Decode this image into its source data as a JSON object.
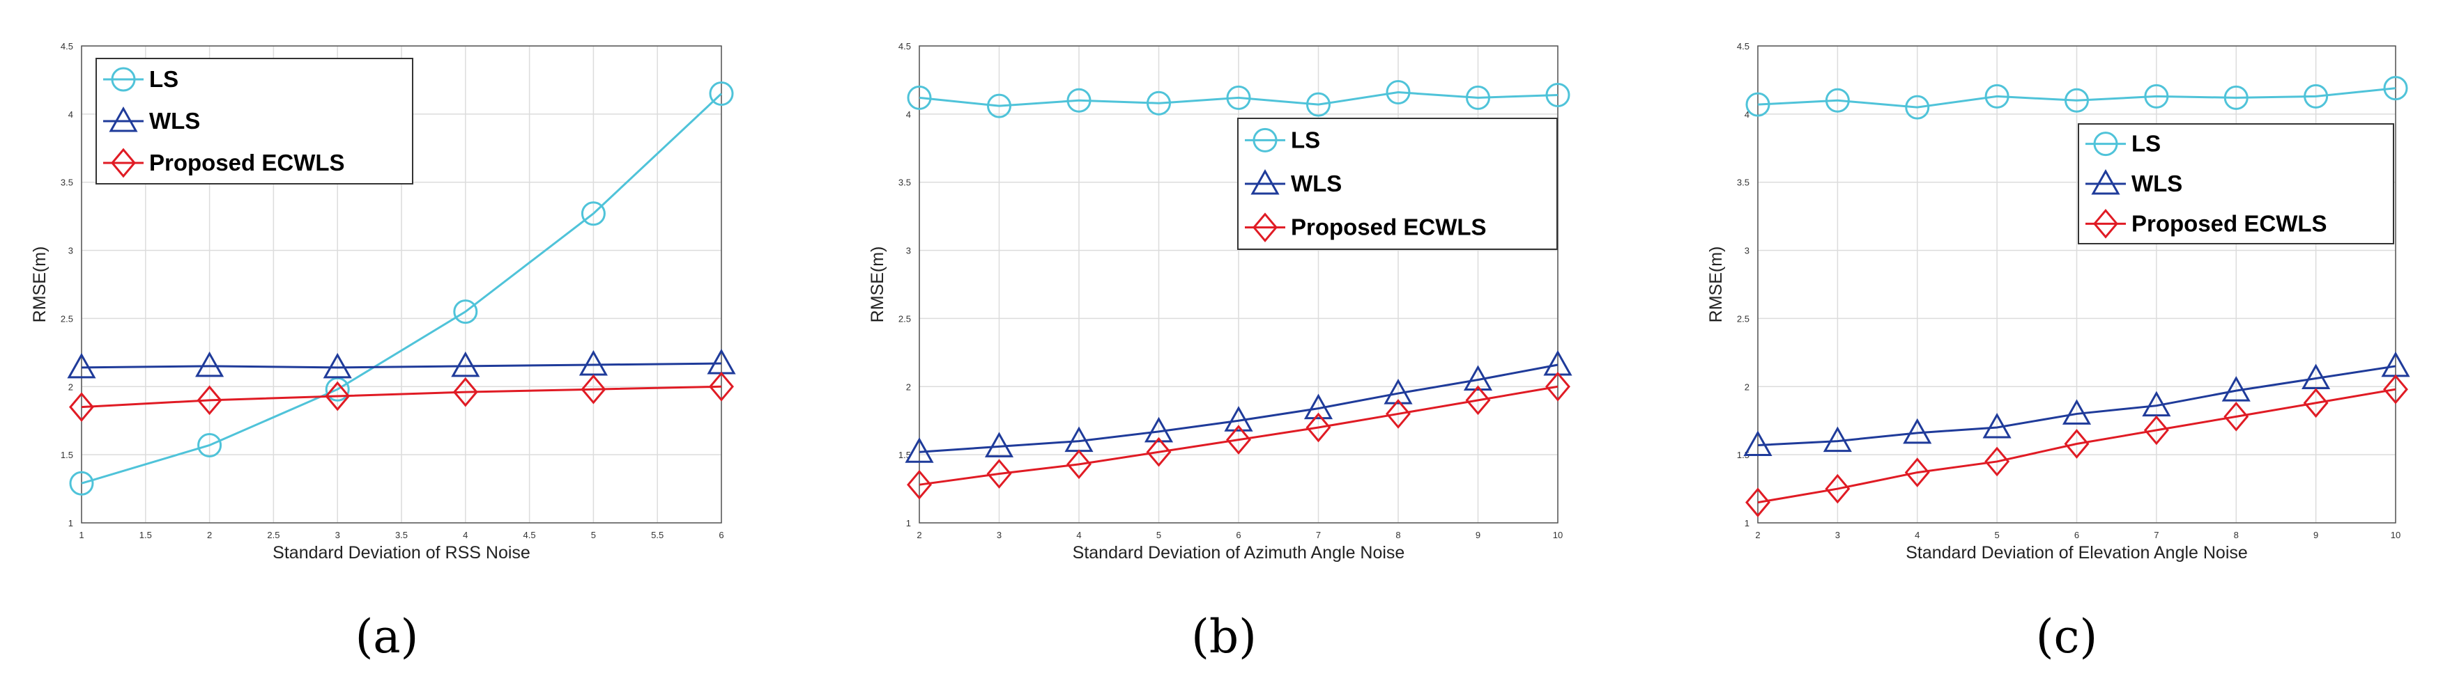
{
  "colors": {
    "LS": "#4fc3d9",
    "WLS": "#1f3b9a",
    "Proposed ECWLS": "#e01b24",
    "grid": "#dcdcdc",
    "axis": "#555555"
  },
  "chart_data": [
    {
      "type": "line",
      "caption": "(a)",
      "title": "",
      "xlabel": "Standard Deviation of RSS Noise",
      "ylabel": "RMSE(m)",
      "xlim": [
        1,
        6
      ],
      "ylim": [
        1,
        4.5
      ],
      "xticks": [
        1,
        1.5,
        2,
        2.5,
        3,
        3.5,
        4,
        4.5,
        5,
        5.5,
        6
      ],
      "xtick_labels": [
        "1",
        "1.5",
        "2",
        "2.5",
        "3",
        "3.5",
        "4",
        "4.5",
        "5",
        "5.5",
        "6"
      ],
      "yticks": [
        1,
        1.5,
        2,
        2.5,
        3,
        3.5,
        4,
        4.5
      ],
      "ytick_labels": [
        "1",
        "1.5",
        "2",
        "2.5",
        "3",
        "3.5",
        "4",
        "4.5"
      ],
      "grid": true,
      "legend_position": "top-left",
      "x": [
        1,
        2,
        3,
        4,
        5,
        6
      ],
      "series": [
        {
          "name": "LS",
          "marker": "circle",
          "values": [
            1.29,
            1.57,
            1.98,
            2.55,
            3.27,
            4.15
          ]
        },
        {
          "name": "WLS",
          "marker": "triangle",
          "values": [
            2.14,
            2.15,
            2.14,
            2.15,
            2.16,
            2.17
          ]
        },
        {
          "name": "Proposed ECWLS",
          "marker": "diamond",
          "values": [
            1.85,
            1.9,
            1.93,
            1.96,
            1.98,
            2.0
          ]
        }
      ]
    },
    {
      "type": "line",
      "caption": "(b)",
      "title": "",
      "xlabel": "Standard Deviation of Azimuth Angle Noise",
      "ylabel": "RMSE(m)",
      "xlim": [
        2,
        10
      ],
      "ylim": [
        1,
        4.5
      ],
      "xticks": [
        2,
        3,
        4,
        5,
        6,
        7,
        8,
        9,
        10
      ],
      "xtick_labels": [
        "2",
        "3",
        "4",
        "5",
        "6",
        "7",
        "8",
        "9",
        "10"
      ],
      "yticks": [
        1,
        1.5,
        2,
        2.5,
        3,
        3.5,
        4,
        4.5
      ],
      "ytick_labels": [
        "1",
        "1.5",
        "2",
        "2.5",
        "3",
        "3.5",
        "4",
        "4.5"
      ],
      "grid": true,
      "legend_position": "top-right",
      "x": [
        2,
        3,
        4,
        5,
        6,
        7,
        8,
        9,
        10
      ],
      "series": [
        {
          "name": "LS",
          "marker": "circle",
          "values": [
            4.12,
            4.06,
            4.1,
            4.08,
            4.12,
            4.07,
            4.16,
            4.12,
            4.14
          ]
        },
        {
          "name": "WLS",
          "marker": "triangle",
          "values": [
            1.52,
            1.56,
            1.6,
            1.67,
            1.75,
            1.84,
            1.95,
            2.05,
            2.16
          ]
        },
        {
          "name": "Proposed ECWLS",
          "marker": "diamond",
          "values": [
            1.28,
            1.36,
            1.43,
            1.52,
            1.61,
            1.7,
            1.8,
            1.9,
            2.0
          ]
        }
      ]
    },
    {
      "type": "line",
      "caption": "(c)",
      "title": "",
      "xlabel": "Standard Deviation of Elevation Angle Noise",
      "ylabel": "RMSE(m)",
      "xlim": [
        2,
        10
      ],
      "ylim": [
        1,
        4.5
      ],
      "xticks": [
        2,
        3,
        4,
        5,
        6,
        7,
        8,
        9,
        10
      ],
      "xtick_labels": [
        "2",
        "3",
        "4",
        "5",
        "6",
        "7",
        "8",
        "9",
        "10"
      ],
      "yticks": [
        1,
        1.5,
        2,
        2.5,
        3,
        3.5,
        4,
        4.5
      ],
      "ytick_labels": [
        "1",
        "1.5",
        "2",
        "2.5",
        "3",
        "3.5",
        "4",
        "4.5"
      ],
      "grid": true,
      "legend_position": "top-right",
      "x": [
        2,
        3,
        4,
        5,
        6,
        7,
        8,
        9,
        10
      ],
      "series": [
        {
          "name": "LS",
          "marker": "circle",
          "values": [
            4.07,
            4.1,
            4.05,
            4.13,
            4.1,
            4.13,
            4.12,
            4.13,
            4.19
          ]
        },
        {
          "name": "WLS",
          "marker": "triangle",
          "values": [
            1.57,
            1.6,
            1.66,
            1.7,
            1.8,
            1.86,
            1.97,
            2.06,
            2.15
          ]
        },
        {
          "name": "Proposed ECWLS",
          "marker": "diamond",
          "values": [
            1.15,
            1.25,
            1.37,
            1.45,
            1.58,
            1.68,
            1.78,
            1.88,
            1.98
          ]
        }
      ]
    }
  ]
}
